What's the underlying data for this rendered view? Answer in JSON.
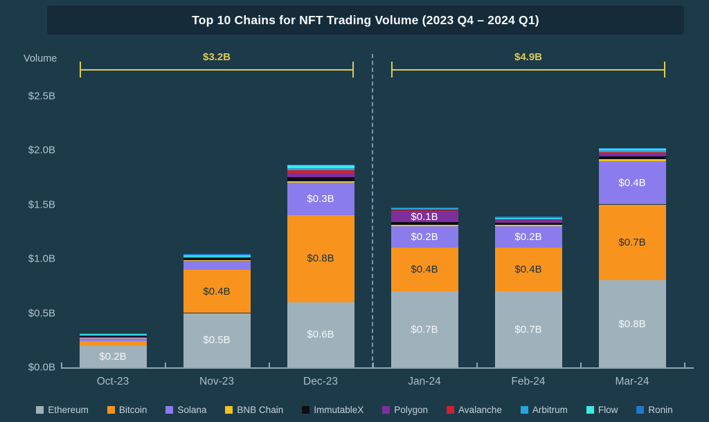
{
  "title": "Top 10 Chains for NFT Trading Volume (2023 Q4 – 2024 Q1)",
  "y_axis": {
    "title": "Volume"
  },
  "colors": {
    "background": "#1d3a49",
    "title_bar": "#152b39",
    "axis": "#8fa6b0",
    "tick_text": "#b0c4cd",
    "bracket": "#ddcb50",
    "divider": "#7e98a4"
  },
  "chart_data": {
    "type": "bar",
    "stacked": true,
    "title": "Top 10 Chains for NFT Trading Volume (2023 Q4 – 2024 Q1)",
    "xlabel": "",
    "ylabel": "Volume",
    "ylim": [
      0,
      2.8
    ],
    "grid": false,
    "legend_position": "bottom",
    "categories": [
      "Oct-23",
      "Nov-23",
      "Dec-23",
      "Jan-24",
      "Feb-24",
      "Mar-24"
    ],
    "y_ticks": [
      {
        "label": "$0.0B",
        "value": 0
      },
      {
        "label": "$0.5B",
        "value": 0.5
      },
      {
        "label": "$1.0B",
        "value": 1.0
      },
      {
        "label": "$1.5B",
        "value": 1.5
      },
      {
        "label": "$2.0B",
        "value": 2.0
      },
      {
        "label": "$2.5B",
        "value": 2.5
      }
    ],
    "series": [
      {
        "name": "Ethereum",
        "color": "#9fb2bc",
        "label_color": "#f2f6f8",
        "values": [
          0.2,
          0.5,
          0.6,
          0.7,
          0.7,
          0.8
        ],
        "labels": [
          "$0.2B",
          "$0.5B",
          "$0.6B",
          "$0.7B",
          "$0.7B",
          "$0.8B"
        ]
      },
      {
        "name": "Bitcoin",
        "color": "#f8941e",
        "label_color": "#16303f",
        "values": [
          0.045,
          0.4,
          0.8,
          0.4,
          0.4,
          0.7
        ],
        "labels": [
          null,
          "$0.4B",
          "$0.8B",
          "$0.4B",
          "$0.4B",
          "$0.7B"
        ]
      },
      {
        "name": "Solana",
        "color": "#8a7cec",
        "label_color": "#ffffff",
        "values": [
          0.025,
          0.08,
          0.3,
          0.2,
          0.2,
          0.4
        ],
        "labels": [
          null,
          null,
          "$0.3B",
          "$0.2B",
          "$0.2B",
          "$0.4B"
        ]
      },
      {
        "name": "BNB Chain",
        "color": "#f2c21a",
        "label_color": "#16303f",
        "values": [
          0.004,
          0.006,
          0.012,
          0.012,
          0.01,
          0.02
        ],
        "labels": [
          null,
          null,
          null,
          null,
          null,
          null
        ]
      },
      {
        "name": "ImmutableX",
        "color": "#0c0e14",
        "label_color": "#ffffff",
        "values": [
          0.018,
          0.02,
          0.04,
          0.025,
          0.02,
          0.025
        ],
        "labels": [
          null,
          null,
          null,
          null,
          null,
          null
        ]
      },
      {
        "name": "Polygon",
        "color": "#7e2f9b",
        "label_color": "#ffffff",
        "values": [
          0.004,
          0.006,
          0.035,
          0.1,
          0.025,
          0.02
        ],
        "labels": [
          null,
          null,
          null,
          "$0.1B",
          null,
          null
        ]
      },
      {
        "name": "Avalanche",
        "color": "#cf2031",
        "label_color": "#ffffff",
        "values": [
          0.003,
          0.004,
          0.03,
          0.012,
          0.005,
          0.015
        ],
        "labels": [
          null,
          null,
          null,
          null,
          null,
          null
        ]
      },
      {
        "name": "Arbitrum",
        "color": "#25a7dd",
        "label_color": "#16303f",
        "values": [
          0.003,
          0.005,
          0.02,
          0.015,
          0.01,
          0.02
        ],
        "labels": [
          null,
          null,
          null,
          null,
          null,
          null
        ]
      },
      {
        "name": "Flow",
        "color": "#3bece0",
        "label_color": "#16303f",
        "values": [
          0.003,
          0.01,
          0.02,
          0.005,
          0.008,
          0.01
        ],
        "labels": [
          null,
          null,
          null,
          null,
          null,
          null
        ]
      },
      {
        "name": "Ronin",
        "color": "#2278cc",
        "label_color": "#ffffff",
        "values": [
          0.01,
          0.012,
          0.012,
          0.005,
          0.01,
          0.01
        ],
        "labels": [
          null,
          null,
          null,
          null,
          null,
          null
        ]
      }
    ],
    "annotations": {
      "brackets": [
        {
          "label": "$3.2B",
          "from_category_index": 0,
          "to_category_index": 2
        },
        {
          "label": "$4.9B",
          "from_category_index": 3,
          "to_category_index": 5
        }
      ],
      "divider_after_category_index": 2
    }
  }
}
